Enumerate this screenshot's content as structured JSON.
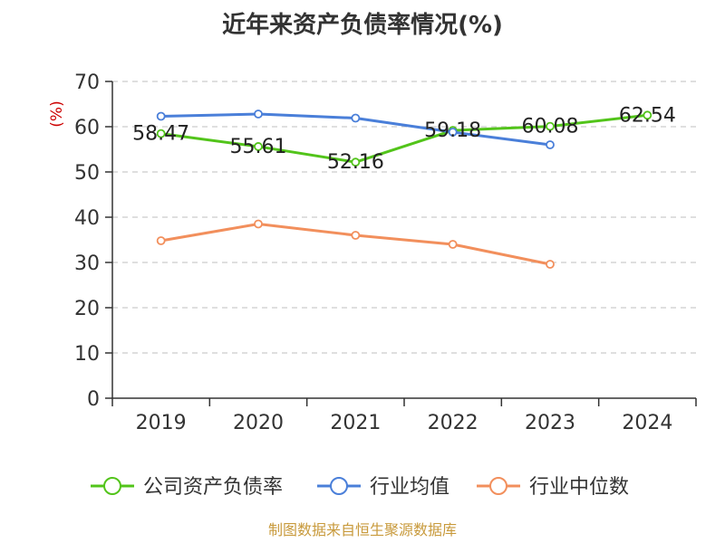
{
  "chart_data": {
    "type": "line",
    "title": "近年来资产负债率情况(%)",
    "ylabel": "(%)",
    "categories": [
      "2019",
      "2020",
      "2021",
      "2022",
      "2023",
      "2024"
    ],
    "ylim": [
      0,
      70
    ],
    "yticks": [
      0,
      10,
      20,
      30,
      40,
      50,
      60,
      70
    ],
    "grid": true,
    "legend_position": "bottom",
    "series": [
      {
        "name": "公司资产负债率",
        "color": "#52c41a",
        "values": [
          58.47,
          55.61,
          52.16,
          59.18,
          60.08,
          62.54
        ],
        "labels": [
          "58.47",
          "55.61",
          "52.16",
          "59.18",
          "60.08",
          "62.54"
        ]
      },
      {
        "name": "行业均值",
        "color": "#4a7fd9",
        "values": [
          62.3,
          62.8,
          61.9,
          58.8,
          56.0,
          null
        ]
      },
      {
        "name": "行业中位数",
        "color": "#f28f5c",
        "values": [
          34.8,
          38.5,
          36.0,
          34.0,
          29.6,
          null
        ]
      }
    ]
  },
  "source": "制图数据来自恒生聚源数据库",
  "colors": {
    "unit": "#cc0000",
    "source": "#c89a3c",
    "axis": "#333333",
    "grid": "#cccccc"
  }
}
